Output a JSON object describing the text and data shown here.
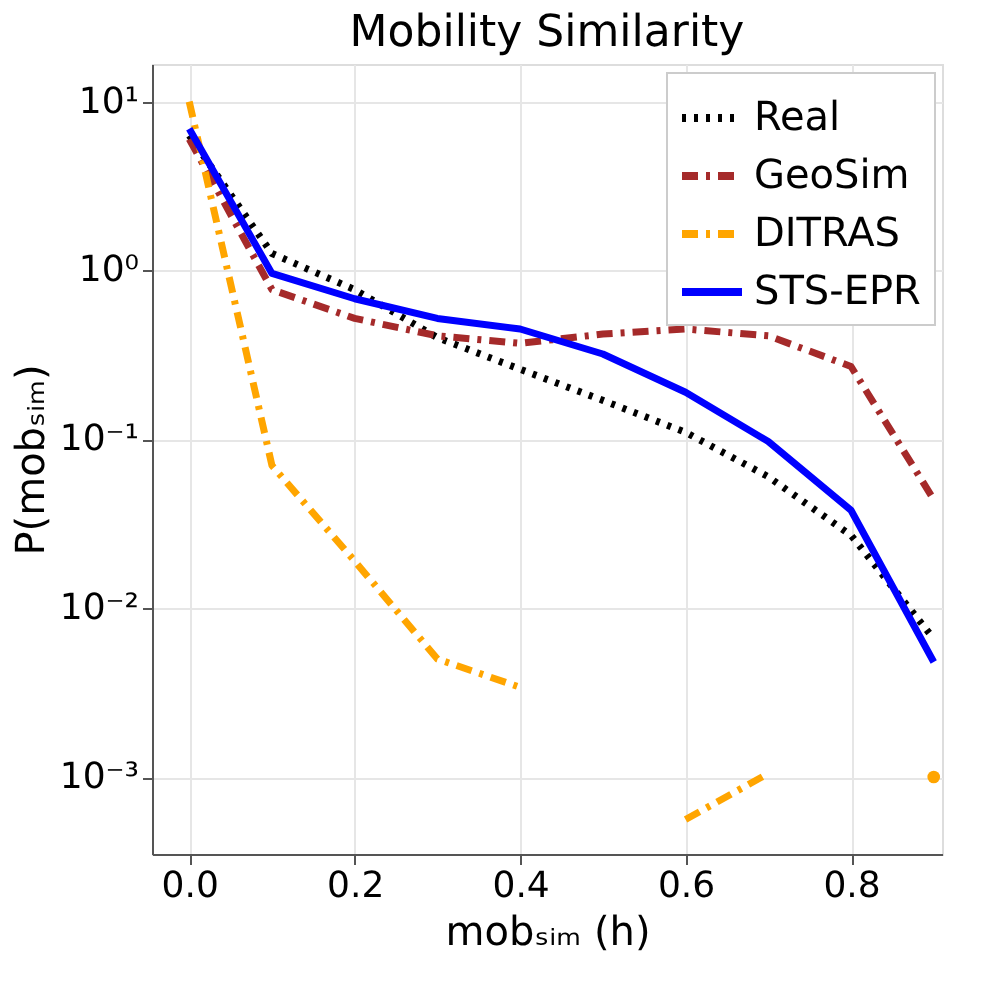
{
  "chart_data": {
    "type": "line",
    "title": "Mobility Similarity",
    "xlabel": "mobₛᵢₘ  (h)",
    "ylabel": "P(mobₛᵢₘ)",
    "x": [
      0.0,
      0.1,
      0.2,
      0.3,
      0.4,
      0.5,
      0.6,
      0.7,
      0.8,
      0.9
    ],
    "series": [
      {
        "name": "Real",
        "color": "#000000",
        "line_style": "dotted",
        "values": [
          6.3,
          1.26,
          0.77,
          0.4,
          0.26,
          0.17,
          0.11,
          0.06,
          0.027,
          0.0066
        ]
      },
      {
        "name": "GeoSim",
        "color": "#a52a2a",
        "line_style": "dashdot",
        "values": [
          6.0,
          0.77,
          0.52,
          0.41,
          0.37,
          0.42,
          0.45,
          0.41,
          0.27,
          0.044
        ]
      },
      {
        "name": "DITRAS",
        "color": "#ffa500",
        "line_style": "dashdot",
        "values": [
          10.0,
          0.07,
          0.019,
          0.005,
          0.0034,
          null,
          0.00056,
          0.00105,
          null,
          0.001
        ]
      },
      {
        "name": "STS-EPR",
        "color": "#0000ff",
        "line_style": "solid",
        "values": [
          6.9,
          0.96,
          0.68,
          0.52,
          0.45,
          0.32,
          0.19,
          0.097,
          0.038,
          0.0048
        ]
      }
    ],
    "log": "y",
    "xlim": [
      -0.045,
      0.91
    ],
    "ylim": [
      0.00035,
      16.7
    ],
    "xticks": [
      {
        "value": 0.0,
        "label": "0.0"
      },
      0.2,
      0.4,
      0.6,
      0.8
    ],
    "yticks": [
      {
        "value": 10,
        "label": "10¹"
      },
      {
        "value": 1,
        "label": "10⁰"
      },
      {
        "value": 0.1,
        "label": "10⁻¹"
      },
      {
        "value": 0.01,
        "label": "10⁻²"
      },
      {
        "value": 0.001,
        "label": "10⁻³"
      }
    ],
    "grid": true,
    "legend": "top right"
  }
}
